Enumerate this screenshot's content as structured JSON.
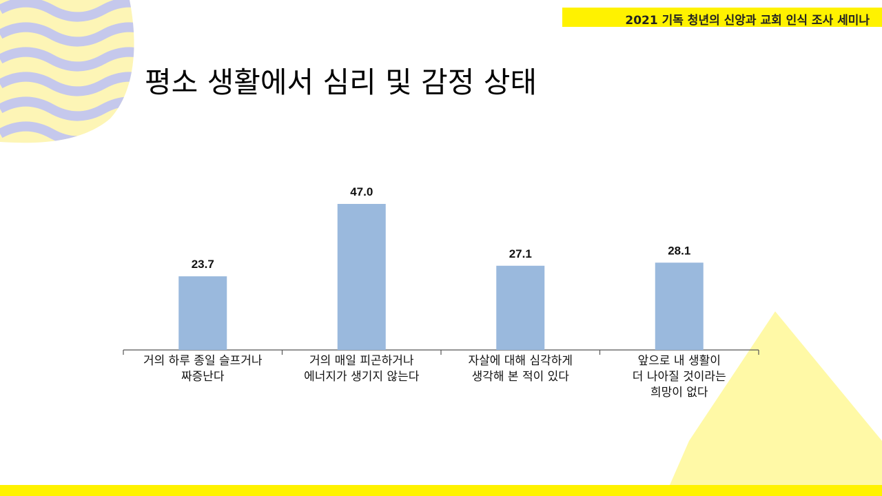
{
  "header": {
    "seminar_title": "2021 기독 청년의 신앙과 교회 인식 조사 세미나"
  },
  "slide": {
    "title": "평소 생활에서 심리 및 감정 상태"
  },
  "colors": {
    "accent_yellow": "#fff200",
    "bar_fill": "#9ab9dd",
    "wave_lavender": "#c5c8ec",
    "wave_cream": "#fdf5b6",
    "triangle_yellow": "#fff9a6"
  },
  "chart_data": {
    "type": "bar",
    "categories": [
      [
        "거의 하루 종일 슬프거나",
        "짜증난다"
      ],
      [
        "거의 매일 피곤하거나",
        "에너지가 생기지 않는다"
      ],
      [
        "자살에 대해 심각하게",
        "생각해 본 적이 있다"
      ],
      [
        "앞으로 내 생활이",
        "더 나아질 것이라는",
        "희망이 없다"
      ]
    ],
    "values": [
      23.7,
      47.0,
      27.1,
      28.1
    ],
    "value_labels": [
      "23.7",
      "47.0",
      "27.1",
      "28.1"
    ],
    "title": "",
    "xlabel": "",
    "ylabel": "",
    "ylim": [
      0,
      47.0
    ],
    "grid": false,
    "legend": "none"
  }
}
